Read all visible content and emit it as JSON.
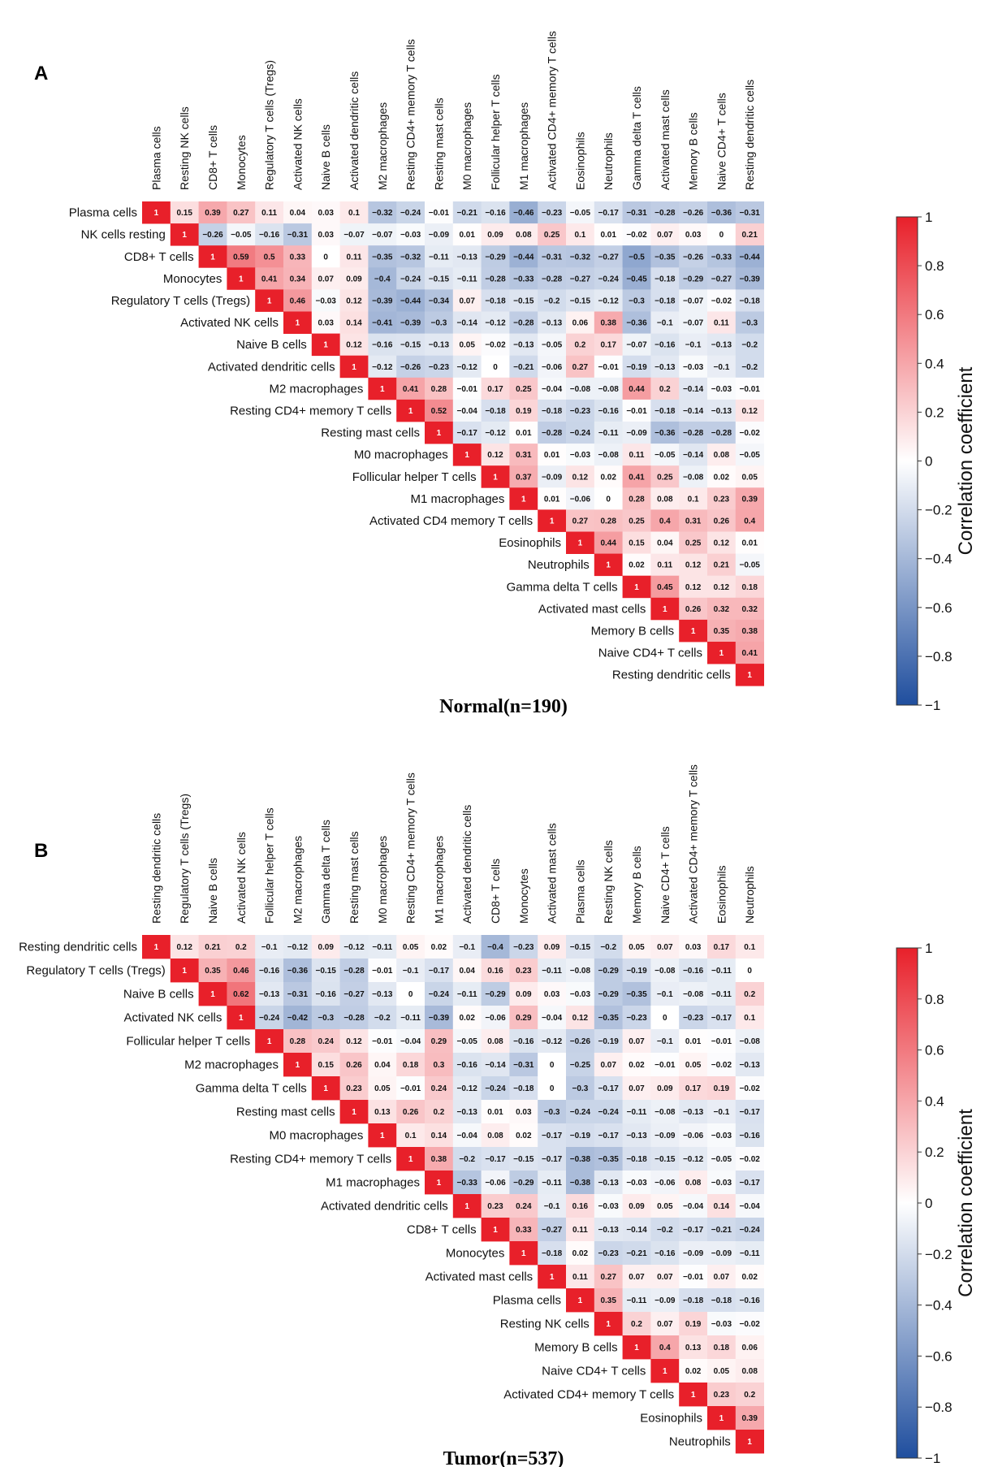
{
  "figure": {
    "panels": [
      {
        "letter": "A",
        "caption": "Normal(n=190)"
      },
      {
        "letter": "B",
        "caption": "Tumor(n=537)"
      }
    ],
    "colorbar": {
      "label": "Correlation coefficient",
      "ticks": [
        "1",
        "0.8",
        "0.6",
        "0.4",
        "0.2",
        "0",
        "−0.2",
        "−0.4",
        "−0.6",
        "−0.8",
        "−1"
      ],
      "colors": {
        "high": "#e8202a",
        "mid": "#ffffff",
        "low": "#1f4e9e"
      }
    }
  },
  "chart_data": [
    {
      "type": "heatmap",
      "title": "Normal(n=190)",
      "panel": "A",
      "col_labels": [
        "Plasma cells",
        "Resting NK cells",
        "CD8+ T cells",
        "Monocytes",
        "Regulatory T cells (Tregs)",
        "Activated NK cells",
        "Naive B cells",
        "Activated dendritic cells",
        "M2 macrophages",
        "Resting CD4+ memory T cells",
        "Resting mast cells",
        "M0 macrophages",
        "Follicular helper T cells",
        "M1 macrophages",
        "Activated CD4+ memory T cells",
        "Eosinophils",
        "Neutrophils",
        "Gamma delta T cells",
        "Activated mast cells",
        "Memory B cells",
        "Naive CD4+ T cells",
        "Resting dendritic cells"
      ],
      "row_labels": [
        "Plasma cells",
        "NK cells resting",
        "CD8+ T cells",
        "Monocytes",
        "Regulatory T cells (Tregs)",
        "Activated NK cells",
        "Naive B cells",
        "Activated dendritic cells",
        "M2 macrophages",
        "Resting CD4+ memory T cells",
        "Resting mast cells",
        "M0 macrophages",
        "Follicular helper T cells",
        "M1 macrophages",
        "Activated CD4 memory T cells",
        "Eosinophils",
        "Neutrophils",
        "Gamma delta T cells",
        "Activated mast cells",
        "Memory B cells",
        "Naive CD4+ T cells",
        "Resting dendritic cells"
      ],
      "values": [
        [
          1,
          0.15,
          0.39,
          0.27,
          0.11,
          0.04,
          0.03,
          0.1,
          -0.32,
          -0.24,
          -0.01,
          -0.21,
          -0.16,
          -0.46,
          -0.23,
          -0.05,
          -0.17,
          -0.31,
          -0.28,
          -0.26,
          -0.36,
          -0.31
        ],
        [
          1,
          -0.26,
          -0.05,
          -0.16,
          -0.31,
          0.03,
          -0.07,
          -0.07,
          -0.03,
          -0.09,
          0.01,
          0.09,
          0.08,
          0.25,
          0.1,
          0.01,
          -0.02,
          0.07,
          0.03,
          0,
          0.21
        ],
        [
          1,
          0.59,
          0.5,
          0.33,
          0,
          0.11,
          -0.35,
          -0.32,
          -0.11,
          -0.13,
          -0.29,
          -0.44,
          -0.31,
          -0.32,
          -0.27,
          -0.5,
          -0.35,
          -0.26,
          -0.33,
          -0.44
        ],
        [
          1,
          0.41,
          0.34,
          0.07,
          0.09,
          -0.4,
          -0.24,
          -0.15,
          -0.11,
          -0.28,
          -0.33,
          -0.28,
          -0.27,
          -0.24,
          -0.45,
          -0.18,
          -0.29,
          -0.27,
          -0.39
        ],
        [
          1,
          0.46,
          -0.03,
          0.12,
          -0.39,
          -0.44,
          -0.34,
          0.07,
          -0.18,
          -0.15,
          -0.2,
          -0.15,
          -0.12,
          -0.3,
          -0.18,
          -0.07,
          -0.02,
          -0.18
        ],
        [
          1,
          0.03,
          0.14,
          -0.41,
          -0.39,
          -0.3,
          -0.14,
          -0.12,
          -0.28,
          -0.13,
          0.06,
          0.38,
          -0.36,
          -0.1,
          -0.07,
          0.11,
          -0.3
        ],
        [
          1,
          0.12,
          -0.16,
          -0.15,
          -0.13,
          0.05,
          -0.02,
          -0.13,
          -0.05,
          0.2,
          0.17,
          -0.07,
          -0.16,
          -0.1,
          -0.13,
          -0.2
        ],
        [
          1,
          -0.12,
          -0.26,
          -0.23,
          -0.12,
          0,
          -0.21,
          -0.06,
          0.27,
          -0.01,
          -0.19,
          -0.13,
          -0.03,
          -0.1,
          -0.2
        ],
        [
          1,
          0.41,
          0.28,
          -0.01,
          0.17,
          0.25,
          -0.04,
          -0.08,
          -0.08,
          0.44,
          0.2,
          -0.14,
          -0.03,
          -0.01
        ],
        [
          1,
          0.52,
          -0.04,
          -0.18,
          0.19,
          -0.18,
          -0.23,
          -0.16,
          -0.01,
          -0.18,
          -0.14,
          -0.13,
          0.12
        ],
        [
          1,
          -0.17,
          -0.12,
          0.01,
          -0.28,
          -0.24,
          -0.11,
          -0.09,
          -0.36,
          -0.28,
          -0.28,
          -0.02
        ],
        [
          1,
          0.12,
          0.31,
          0.01,
          -0.03,
          -0.08,
          0.11,
          -0.05,
          -0.14,
          0.08,
          -0.05
        ],
        [
          1,
          0.37,
          -0.09,
          0.12,
          0.02,
          0.41,
          0.25,
          -0.08,
          0.02,
          0.05
        ],
        [
          1,
          0.01,
          -0.06,
          0,
          0.28,
          0.08,
          0.1,
          0.23,
          0.39
        ],
        [
          1,
          0.27,
          0.28,
          0.25,
          0.4,
          0.31,
          0.26,
          0.4
        ],
        [
          1,
          0.44,
          0.15,
          0.04,
          0.25,
          0.12,
          0.01
        ],
        [
          1,
          0.02,
          0.11,
          0.12,
          0.21,
          -0.05
        ],
        [
          1,
          0.45,
          0.12,
          0.12,
          0.18
        ],
        [
          1,
          0.26,
          0.32,
          0.32
        ],
        [
          1,
          0.35,
          0.38
        ],
        [
          1,
          0.41
        ],
        [
          1
        ]
      ],
      "value_range": [
        -1,
        1
      ]
    },
    {
      "type": "heatmap",
      "title": "Tumor(n=537)",
      "panel": "B",
      "col_labels": [
        "Resting dendritic cells",
        "Regulatory T cells (Tregs)",
        "Naive B cells",
        "Activated NK cells",
        "Follicular helper T cells",
        "M2 macrophages",
        "Gamma delta T cells",
        "Resting mast cells",
        "M0 macrophages",
        "Resting CD4+ memory T cells",
        "M1 macrophages",
        "Activated dendritic cells",
        "CD8+ T cells",
        "Monocytes",
        "Activated mast cells",
        "Plasma cells",
        "Resting NK cells",
        "Memory B cells",
        "Naive CD4+ T cells",
        "Activated CD4+ memory T cells",
        "Eosinophils",
        "Neutrophils"
      ],
      "row_labels": [
        "Resting dendritic cells",
        "Regulatory T cells (Tregs)",
        "Naive B cells",
        "Activated NK cells",
        "Follicular helper T cells",
        "M2 macrophages",
        "Gamma delta T cells",
        "Resting mast cells",
        "M0 macrophages",
        "Resting CD4+ memory T cells",
        "M1 macrophages",
        "Activated dendritic cells",
        "CD8+ T cells",
        "Monocytes",
        "Activated mast cells",
        "Plasma cells",
        "Resting NK cells",
        "Memory B cells",
        "Naive CD4+ T cells",
        "Activated CD4+ memory T cells",
        "Eosinophils",
        "Neutrophils"
      ],
      "values": [
        [
          1,
          0.12,
          0.21,
          0.2,
          -0.1,
          -0.12,
          0.09,
          -0.12,
          -0.11,
          0.05,
          0.02,
          -0.1,
          -0.4,
          -0.23,
          0.09,
          -0.15,
          -0.2,
          0.05,
          0.07,
          0.03,
          0.17,
          0.1
        ],
        [
          1,
          0.35,
          0.46,
          -0.16,
          -0.36,
          -0.15,
          -0.28,
          -0.01,
          -0.1,
          -0.17,
          0.04,
          0.16,
          0.23,
          -0.11,
          -0.08,
          -0.29,
          -0.19,
          -0.08,
          -0.16,
          -0.11,
          0
        ],
        [
          1,
          0.62,
          -0.13,
          -0.31,
          -0.16,
          -0.27,
          -0.13,
          0,
          -0.24,
          -0.11,
          -0.29,
          0.09,
          0.03,
          -0.03,
          -0.29,
          -0.35,
          -0.1,
          -0.08,
          -0.11,
          0.2
        ],
        [
          1,
          -0.24,
          -0.42,
          -0.3,
          -0.28,
          -0.2,
          -0.11,
          -0.39,
          0.02,
          -0.06,
          0.29,
          -0.04,
          0.12,
          -0.35,
          -0.23,
          0,
          -0.23,
          -0.17,
          0.1
        ],
        [
          1,
          0.28,
          0.24,
          0.12,
          -0.01,
          -0.04,
          0.29,
          -0.05,
          0.08,
          -0.16,
          -0.12,
          -0.26,
          -0.19,
          0.07,
          -0.1,
          0.01,
          -0.01,
          -0.08
        ],
        [
          1,
          0.15,
          0.26,
          0.04,
          0.18,
          0.3,
          -0.16,
          -0.14,
          -0.31,
          0,
          -0.25,
          0.07,
          0.02,
          -0.01,
          0.05,
          -0.02,
          -0.13
        ],
        [
          1,
          0.23,
          0.05,
          -0.01,
          0.24,
          -0.12,
          -0.24,
          -0.18,
          0,
          -0.3,
          -0.17,
          0.07,
          0.09,
          0.17,
          0.19,
          -0.02
        ],
        [
          1,
          0.13,
          0.26,
          0.2,
          -0.13,
          0.01,
          0.03,
          -0.3,
          -0.24,
          -0.24,
          -0.11,
          -0.08,
          -0.13,
          -0.1,
          -0.17
        ],
        [
          1,
          0.1,
          0.14,
          -0.04,
          0.08,
          0.02,
          -0.17,
          -0.19,
          -0.17,
          -0.13,
          -0.09,
          -0.06,
          -0.03,
          -0.16
        ],
        [
          1,
          0.38,
          -0.2,
          -0.17,
          -0.15,
          -0.17,
          -0.38,
          -0.35,
          -0.18,
          -0.15,
          -0.12,
          -0.05,
          -0.02
        ],
        [
          1,
          -0.33,
          -0.06,
          -0.29,
          -0.11,
          -0.38,
          -0.13,
          -0.03,
          -0.06,
          0.08,
          -0.03,
          -0.17
        ],
        [
          1,
          0.23,
          0.24,
          -0.1,
          0.16,
          -0.03,
          0.09,
          0.05,
          -0.04,
          0.14,
          -0.04
        ],
        [
          1,
          0.33,
          -0.27,
          0.11,
          -0.13,
          -0.14,
          -0.2,
          -0.17,
          -0.21,
          -0.24
        ],
        [
          1,
          -0.18,
          0.02,
          -0.23,
          -0.21,
          -0.16,
          -0.09,
          -0.09,
          -0.11
        ],
        [
          1,
          0.11,
          0.27,
          0.07,
          0.07,
          -0.01,
          0.07,
          0.02
        ],
        [
          1,
          0.35,
          -0.11,
          -0.09,
          -0.18,
          -0.18,
          -0.16
        ],
        [
          1,
          0.2,
          0.07,
          0.19,
          -0.03,
          -0.02
        ],
        [
          1,
          0.4,
          0.13,
          0.18,
          0.06
        ],
        [
          1,
          0.02,
          0.05,
          0.08
        ],
        [
          1,
          0.23,
          0.2
        ],
        [
          1,
          0.39
        ],
        [
          1
        ]
      ],
      "value_range": [
        -1,
        1
      ]
    }
  ]
}
